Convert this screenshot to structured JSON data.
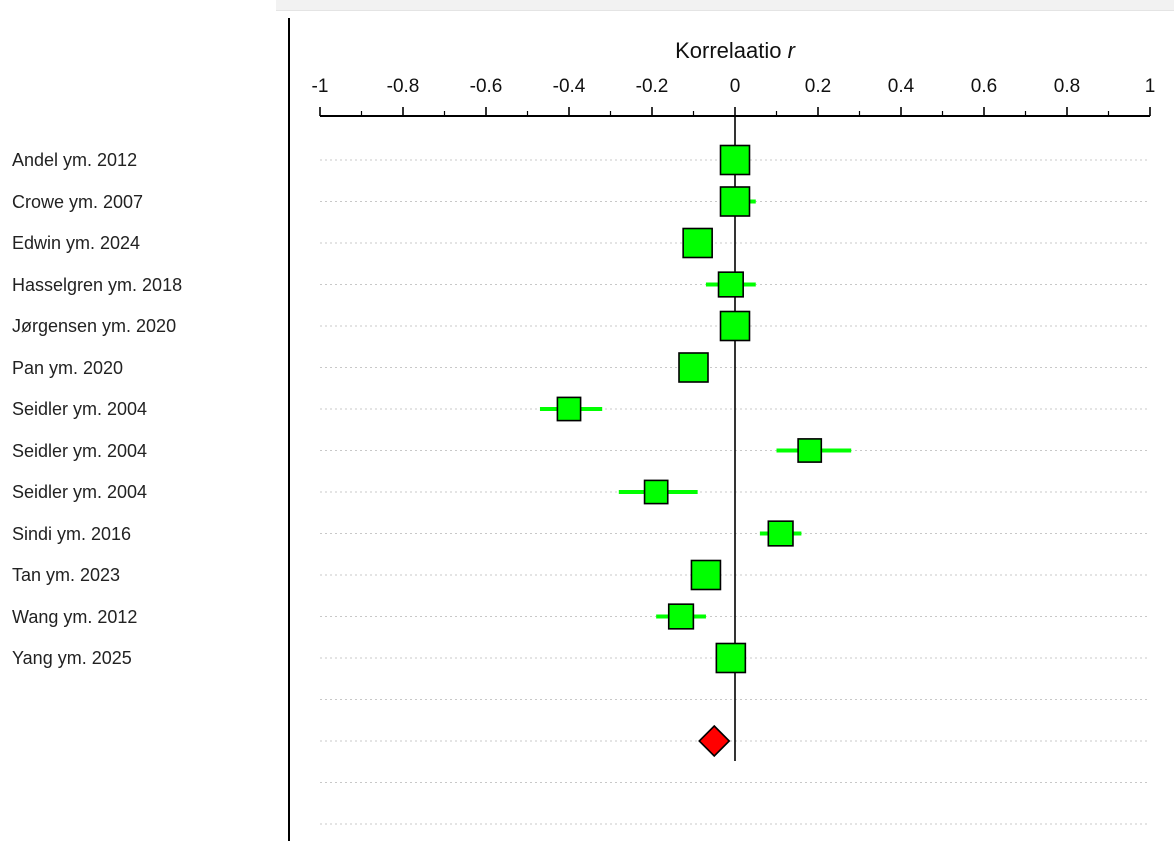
{
  "chart_data": {
    "type": "forest",
    "xlabel_main": "Korrelaatio",
    "xlabel_symbol": "r",
    "xlim": [
      -1,
      1
    ],
    "ticks": [
      -1,
      -0.8,
      -0.6,
      -0.4,
      -0.2,
      0,
      0.2,
      0.4,
      0.6,
      0.8,
      1
    ],
    "tick_labels": [
      "-1",
      "-0.8",
      "-0.6",
      "-0.4",
      "-0.2",
      "0",
      "0.2",
      "0.4",
      "0.6",
      "0.8",
      "1"
    ],
    "grid": "dotted horizontal",
    "studies": [
      {
        "label": "Andel ym. 2012",
        "r": 0.0,
        "ci": [
          0.0,
          0.0
        ],
        "weight": 1.0
      },
      {
        "label": "Crowe ym. 2007",
        "r": 0.0,
        "ci": [
          -0.03,
          0.05
        ],
        "weight": 1.0
      },
      {
        "label": "Edwin ym. 2024",
        "r": -0.09,
        "ci": [
          -0.09,
          -0.09
        ],
        "weight": 1.0
      },
      {
        "label": "Hasselgren ym. 2018",
        "r": -0.01,
        "ci": [
          -0.07,
          0.05
        ],
        "weight": 0.85
      },
      {
        "label": "Jørgensen ym. 2020",
        "r": 0.0,
        "ci": [
          0.0,
          0.0
        ],
        "weight": 1.0
      },
      {
        "label": "Pan ym. 2020",
        "r": -0.1,
        "ci": [
          -0.1,
          -0.1
        ],
        "weight": 1.0
      },
      {
        "label": "Seidler ym. 2004",
        "r": -0.4,
        "ci": [
          -0.47,
          -0.32
        ],
        "weight": 0.8
      },
      {
        "label": "Seidler ym. 2004",
        "r": 0.18,
        "ci": [
          0.1,
          0.28
        ],
        "weight": 0.8
      },
      {
        "label": "Seidler ym. 2004",
        "r": -0.19,
        "ci": [
          -0.28,
          -0.09
        ],
        "weight": 0.8
      },
      {
        "label": "Sindi ym. 2016",
        "r": 0.11,
        "ci": [
          0.06,
          0.16
        ],
        "weight": 0.85
      },
      {
        "label": "Tan ym. 2023",
        "r": -0.07,
        "ci": [
          -0.07,
          -0.07
        ],
        "weight": 1.0
      },
      {
        "label": "Wang ym. 2012",
        "r": -0.13,
        "ci": [
          -0.19,
          -0.07
        ],
        "weight": 0.85
      },
      {
        "label": "Yang ym. 2025",
        "r": -0.01,
        "ci": [
          -0.01,
          -0.01
        ],
        "weight": 1.0
      }
    ],
    "pooled": {
      "r": -0.05
    },
    "colors": {
      "study": "#00ff00",
      "ci_line": "#00ff00",
      "pooled": "#ff0000",
      "outline": "#000000",
      "grid": "#c8c8c8"
    }
  }
}
